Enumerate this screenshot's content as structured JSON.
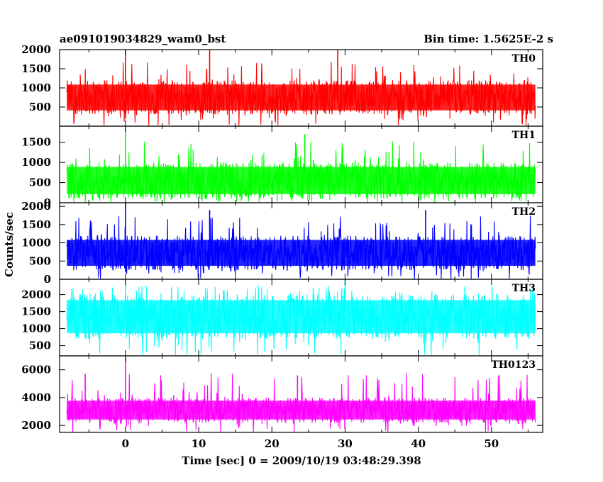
{
  "chart_data": {
    "type": "line",
    "title": "ae091019034829_wam0_bst",
    "subtitle": "Bin time: 1.5625E-2 s",
    "xlabel": "Time [sec] 0 = 2009/10/19 03:48:29.398",
    "ylabel": "Counts/sec",
    "xlim": [
      -9,
      57
    ],
    "xticks": [
      0,
      10,
      20,
      30,
      40,
      50
    ],
    "x_range_of_data": [
      -8,
      56
    ],
    "panels": [
      {
        "name": "TH0",
        "color": "#ff0000",
        "ylim": [
          0,
          2000
        ],
        "yticks": [
          500,
          1000,
          1500,
          2000
        ],
        "typical_range": [
          300,
          1200
        ],
        "max": 2000,
        "spikes": [
          {
            "x": 0,
            "y": 2000
          },
          {
            "x": 11.5,
            "y": 2000
          },
          {
            "x": 29,
            "y": 2000
          }
        ]
      },
      {
        "name": "TH1",
        "color": "#00ff00",
        "ylim": [
          0,
          1900
        ],
        "yticks": [
          0,
          500,
          1000,
          1500
        ],
        "typical_range": [
          100,
          1000
        ],
        "max": 1900,
        "spikes": [
          {
            "x": 0,
            "y": 1900
          },
          {
            "x": 24.5,
            "y": 1700
          }
        ]
      },
      {
        "name": "TH2",
        "color": "#0000ff",
        "ylim": [
          0,
          2100
        ],
        "yticks": [
          0,
          500,
          1000,
          1500,
          2000
        ],
        "typical_range": [
          250,
          1200
        ],
        "max": 2100,
        "spikes": [
          {
            "x": 0,
            "y": 2100
          },
          {
            "x": 11.5,
            "y": 1900
          },
          {
            "x": 41,
            "y": 1900
          }
        ]
      },
      {
        "name": "TH3",
        "color": "#00ffff",
        "ylim": [
          200,
          2450
        ],
        "yticks": [
          500,
          1000,
          1500,
          2000
        ],
        "typical_range": [
          700,
          2000
        ],
        "max": 2450,
        "spikes": [
          {
            "x": 0,
            "y": 2450
          },
          {
            "x": 30,
            "y": 2450
          }
        ]
      },
      {
        "name": "TH0123",
        "color": "#ff00ff",
        "ylim": [
          1500,
          7000
        ],
        "yticks": [
          2000,
          4000,
          6000
        ],
        "typical_range": [
          2200,
          4000
        ],
        "max": 7000,
        "spikes": [
          {
            "x": 0,
            "y": 7000
          },
          {
            "x": -5.5,
            "y": 5700
          },
          {
            "x": 23.5,
            "y": 5600
          }
        ]
      }
    ]
  }
}
